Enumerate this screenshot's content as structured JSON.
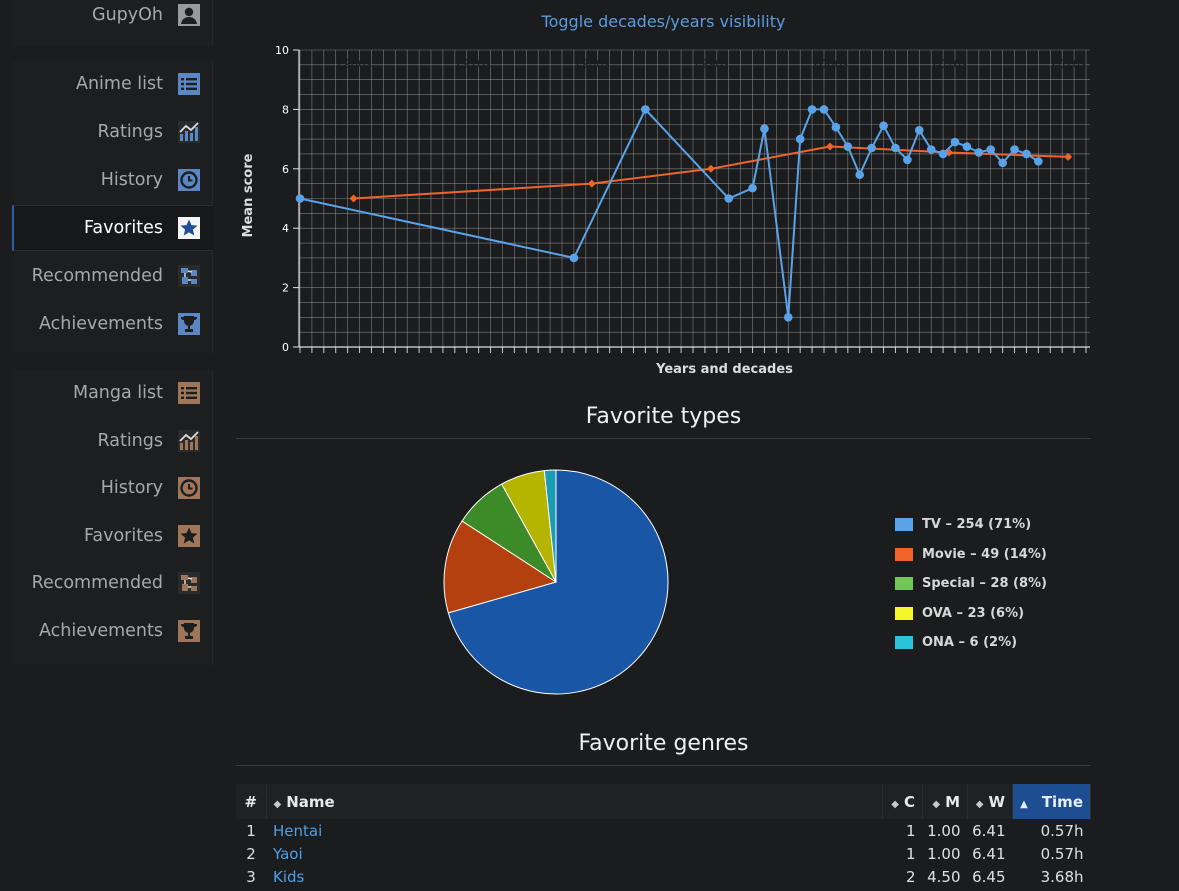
{
  "sidebar": {
    "user": {
      "label": "GupyOh",
      "icon": "user-icon"
    },
    "anime_items": [
      {
        "label": "Anime list",
        "icon": "list-icon"
      },
      {
        "label": "Ratings",
        "icon": "ratings-chart-icon"
      },
      {
        "label": "History",
        "icon": "history-clock-icon"
      },
      {
        "label": "Favorites",
        "icon": "star-icon"
      },
      {
        "label": "Recommended",
        "icon": "recommended-icon"
      },
      {
        "label": "Achievements",
        "icon": "trophy-icon"
      }
    ],
    "manga_items": [
      {
        "label": "Manga list",
        "icon": "list-icon"
      },
      {
        "label": "Ratings",
        "icon": "ratings-chart-icon"
      },
      {
        "label": "History",
        "icon": "history-clock-icon"
      },
      {
        "label": "Favorites",
        "icon": "star-icon"
      },
      {
        "label": "Recommended",
        "icon": "recommended-icon"
      },
      {
        "label": "Achievements",
        "icon": "trophy-icon"
      }
    ],
    "active": "Favorites",
    "colors": {
      "anime_icon": "#5b88c4",
      "manga_icon": "#a0765a",
      "active_bar": "#2d5fa5"
    }
  },
  "main": {
    "toggle_link": "Toggle decades/years visibility",
    "types_title": "Favorite types",
    "genres_title": "Favorite genres"
  },
  "chart_data": [
    {
      "type": "line",
      "xlabel": "Years and decades",
      "ylabel": "Mean score",
      "ylim": [
        0,
        10
      ],
      "yticks": [
        0,
        2,
        4,
        6,
        8,
        10
      ],
      "xlim": [
        1956,
        2022
      ],
      "decade_labels": [
        "1960s",
        "1970s",
        "1980s",
        "1990s",
        "2000s",
        "2010s",
        "2020s"
      ],
      "grid": true,
      "series": [
        {
          "color": "#5aa3e8",
          "points": [
            [
              1956,
              5
            ],
            [
              1979,
              3
            ],
            [
              1985,
              8
            ],
            [
              1992,
              5
            ],
            [
              1994,
              5.35
            ],
            [
              1995,
              7.35
            ],
            [
              1997,
              1
            ],
            [
              1998,
              7
            ],
            [
              1999,
              8
            ],
            [
              2000,
              8
            ],
            [
              2001,
              7.4
            ],
            [
              2002,
              6.75
            ],
            [
              2003,
              5.8
            ],
            [
              2004,
              6.7
            ],
            [
              2005,
              7.45
            ],
            [
              2006,
              6.7
            ],
            [
              2007,
              6.3
            ],
            [
              2008,
              7.3
            ],
            [
              2009,
              6.65
            ],
            [
              2010,
              6.5
            ],
            [
              2011,
              6.9
            ],
            [
              2012,
              6.75
            ],
            [
              2013,
              6.55
            ],
            [
              2014,
              6.65
            ],
            [
              2015,
              6.2
            ],
            [
              2016,
              6.65
            ],
            [
              2017,
              6.5
            ],
            [
              2018,
              6.25
            ]
          ]
        },
        {
          "color": "#f0642a",
          "points": [
            [
              1960.5,
              5
            ],
            [
              1980.5,
              5.5
            ],
            [
              1990.5,
              6
            ],
            [
              2000.5,
              6.75
            ],
            [
              2010.5,
              6.55
            ],
            [
              2020.5,
              6.4
            ]
          ]
        }
      ]
    },
    {
      "type": "pie",
      "title": "Favorite types",
      "slices": [
        {
          "label": "TV",
          "value": 254,
          "percent": "71%",
          "color": "#1a56a6",
          "legend_color": "#5aa3e8",
          "legend": "TV – 254 (71%)"
        },
        {
          "label": "Movie",
          "value": 49,
          "percent": "14%",
          "color": "#b5400f",
          "legend_color": "#f0642a",
          "legend": "Movie – 49 (14%)"
        },
        {
          "label": "Special",
          "value": 28,
          "percent": "8%",
          "color": "#3d8a28",
          "legend_color": "#72c556",
          "legend": "Special – 28 (8%)"
        },
        {
          "label": "OVA",
          "value": 23,
          "percent": "6%",
          "color": "#b5b500",
          "legend_color": "#f5f52a",
          "legend": "OVA – 23 (6%)"
        },
        {
          "label": "ONA",
          "value": 6,
          "percent": "2%",
          "color": "#1a9cb3",
          "legend_color": "#2ac3d8",
          "legend": "ONA – 6 (2%)"
        }
      ]
    }
  ],
  "genres_table": {
    "headers": {
      "num": "#",
      "name": "Name",
      "c": "C",
      "m": "M",
      "w": "W",
      "time": "Time"
    },
    "sorted_column": "Time",
    "rows": [
      {
        "num": "1",
        "name": "Hentai",
        "c": "1",
        "m": "1.00",
        "w": "6.41",
        "time": "0.57h"
      },
      {
        "num": "2",
        "name": "Yaoi",
        "c": "1",
        "m": "1.00",
        "w": "6.41",
        "time": "0.57h"
      },
      {
        "num": "3",
        "name": "Kids",
        "c": "2",
        "m": "4.50",
        "w": "6.45",
        "time": "3.68h"
      }
    ]
  }
}
